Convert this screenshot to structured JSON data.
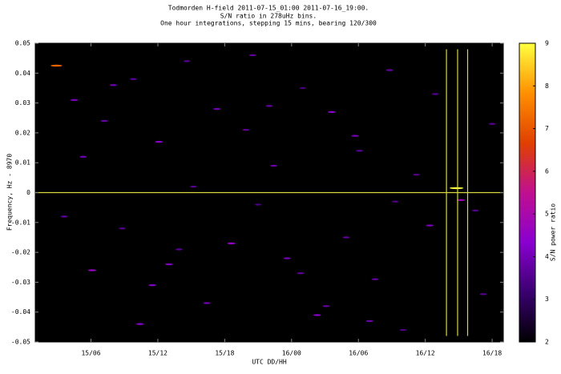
{
  "chart_data": {
    "type": "heatmap",
    "title": [
      "Todmorden H-field 2011-07-15_01:00 2011-07-16_19:00.",
      "S/N ratio in 278uHz bins.",
      "One hour integrations, stepping 15 mins, bearing 120/300"
    ],
    "x_label": "UTC DD/HH",
    "y_label": "Frequency, Hz - 8970",
    "colorbar_label": "S/N power ratio",
    "xlim": [
      1,
      43
    ],
    "xticks": [
      {
        "value": 6,
        "label": "15/06"
      },
      {
        "value": 12,
        "label": "15/12"
      },
      {
        "value": 18,
        "label": "15/18"
      },
      {
        "value": 24,
        "label": "16/00"
      },
      {
        "value": 30,
        "label": "16/06"
      },
      {
        "value": 36,
        "label": "16/12"
      },
      {
        "value": 42,
        "label": "16/18"
      }
    ],
    "ylim": [
      -0.05,
      0.05
    ],
    "yticks": [
      0.05,
      0.04,
      0.03,
      0.02,
      0.01,
      0,
      -0.01,
      -0.02,
      -0.03,
      -0.04,
      -0.05
    ],
    "zlim": [
      2,
      9
    ],
    "zticks": [
      2,
      3,
      4,
      5,
      6,
      7,
      8,
      9
    ],
    "colormap": [
      "#000000",
      "#3a0070",
      "#8a00d0",
      "#c01090",
      "#e04000",
      "#ff9000",
      "#ffff40"
    ],
    "marker_color": "#d8d840",
    "hline": 0,
    "vlines": [
      37.9,
      38.9,
      39.8
    ],
    "x": [
      2.9,
      4.5,
      7.2,
      9.8,
      12.1,
      14.6,
      17.3,
      19.9,
      22.4,
      25.0,
      27.6,
      30.1,
      32.8,
      35.2,
      3.6,
      6.1,
      8.8,
      11.5,
      13.9,
      16.4,
      21.0,
      23.6,
      26.3,
      28.9,
      31.5,
      34.0,
      36.4,
      41.2,
      5.3,
      10.4,
      15.2,
      20.5,
      24.8,
      29.7,
      33.3,
      38.8,
      39.2,
      42.0,
      8.0,
      18.6,
      27.1,
      36.9,
      13.0,
      22.0,
      31.0,
      40.5
    ],
    "y": [
      0.0425,
      0.031,
      0.024,
      0.038,
      0.017,
      0.044,
      0.028,
      0.021,
      0.009,
      0.035,
      0.027,
      0.014,
      0.041,
      0.006,
      -0.008,
      -0.026,
      -0.012,
      -0.031,
      -0.019,
      -0.037,
      -0.004,
      -0.022,
      -0.041,
      -0.015,
      -0.029,
      -0.046,
      -0.011,
      -0.034,
      0.012,
      -0.044,
      0.002,
      0.046,
      -0.027,
      0.019,
      -0.003,
      0.0015,
      -0.0025,
      0.023,
      0.036,
      -0.017,
      -0.038,
      0.033,
      -0.024,
      0.029,
      -0.043,
      -0.006
    ],
    "values": [
      7.2,
      4.1,
      3.8,
      3.6,
      4.3,
      3.5,
      4.0,
      3.7,
      3.9,
      3.4,
      4.4,
      3.6,
      3.8,
      3.5,
      3.7,
      4.6,
      3.5,
      4.2,
      3.6,
      3.9,
      3.4,
      4.0,
      4.3,
      3.7,
      3.8,
      3.5,
      4.1,
      3.6,
      3.9,
      4.2,
      3.6,
      3.8,
      3.7,
      4.0,
      3.5,
      9.0,
      4.8,
      3.6,
      3.9,
      4.5,
      3.7,
      3.6,
      4.2,
      3.8,
      3.9,
      3.5
    ]
  }
}
